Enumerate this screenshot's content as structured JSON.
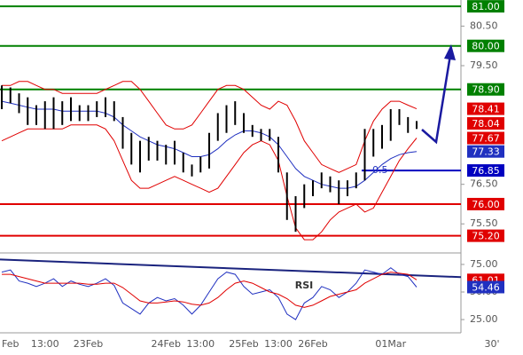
{
  "chart_data": [
    {
      "type": "range_bar",
      "categories": [
        null,
        "Feb",
        null,
        null,
        null,
        "13:00",
        null,
        null,
        null,
        null,
        "23Feb",
        null,
        null,
        null,
        null,
        null,
        null,
        null,
        null,
        "24Feb",
        null,
        null,
        null,
        "13:00",
        null,
        null,
        null,
        null,
        "25Feb",
        null,
        null,
        null,
        "13:00",
        null,
        null,
        null,
        "26Feb",
        null,
        null,
        null,
        null,
        null,
        null,
        null,
        null,
        "01Mar",
        null,
        null,
        null
      ],
      "x_unit_label": "30'",
      "high": [
        79.0,
        78.95,
        78.8,
        78.7,
        78.5,
        78.6,
        78.7,
        78.6,
        78.7,
        78.5,
        78.5,
        78.6,
        78.7,
        78.6,
        78.2,
        77.8,
        77.6,
        77.7,
        77.6,
        77.5,
        77.6,
        77.3,
        77.0,
        77.2,
        77.8,
        78.3,
        78.5,
        78.6,
        78.3,
        78.0,
        77.9,
        77.9,
        77.7,
        76.8,
        76.2,
        76.5,
        76.6,
        76.8,
        76.7,
        76.6,
        76.6,
        76.8,
        77.9,
        77.9,
        78.0,
        78.4,
        78.4,
        78.2,
        78.1
      ],
      "low": [
        78.4,
        78.55,
        78.3,
        78.0,
        78.0,
        77.9,
        77.9,
        78.0,
        78.1,
        78.1,
        78.1,
        78.2,
        78.2,
        78.1,
        77.4,
        77.0,
        76.8,
        77.1,
        77.1,
        77.0,
        77.0,
        76.8,
        76.7,
        76.8,
        76.9,
        77.6,
        77.8,
        78.0,
        77.8,
        77.7,
        77.6,
        77.6,
        76.8,
        75.6,
        75.3,
        75.9,
        76.2,
        76.4,
        76.3,
        76.0,
        76.2,
        76.4,
        76.6,
        77.2,
        77.4,
        77.6,
        78.0,
        77.8,
        77.9
      ],
      "color": "#000000",
      "last_price": 78.04,
      "last_price_color": "#e00000",
      "bands": [
        {
          "color": "#e00000",
          "values": [
            79.0,
            79.0,
            79.1,
            79.1,
            79.0,
            78.9,
            78.9,
            78.8,
            78.8,
            78.8,
            78.8,
            78.8,
            78.9,
            79.0,
            79.1,
            79.1,
            78.9,
            78.6,
            78.3,
            78.0,
            77.9,
            77.9,
            78.0,
            78.3,
            78.6,
            78.9,
            79.0,
            79.0,
            78.9,
            78.7,
            78.5,
            78.4,
            78.6,
            78.5,
            78.1,
            77.6,
            77.3,
            77.0,
            76.9,
            76.8,
            76.9,
            77.0,
            77.6,
            78.1,
            78.4,
            78.6,
            78.6,
            78.5,
            78.41
          ]
        },
        {
          "color": "#e00000",
          "values": [
            77.6,
            77.7,
            77.8,
            77.9,
            77.9,
            77.9,
            77.9,
            77.9,
            78.0,
            78.0,
            78.0,
            78.0,
            77.9,
            77.6,
            77.1,
            76.6,
            76.4,
            76.4,
            76.5,
            76.6,
            76.7,
            76.6,
            76.5,
            76.4,
            76.3,
            76.4,
            76.7,
            77.0,
            77.3,
            77.5,
            77.6,
            77.5,
            77.1,
            76.2,
            75.4,
            75.1,
            75.1,
            75.3,
            75.6,
            75.8,
            75.9,
            76.0,
            75.8,
            75.9,
            76.3,
            76.7,
            77.1,
            77.4,
            77.67
          ]
        },
        {
          "color": "#2030c0",
          "values": [
            78.6,
            78.55,
            78.5,
            78.45,
            78.4,
            78.4,
            78.4,
            78.35,
            78.35,
            78.35,
            78.35,
            78.35,
            78.3,
            78.2,
            78.0,
            77.85,
            77.7,
            77.6,
            77.5,
            77.45,
            77.4,
            77.3,
            77.2,
            77.2,
            77.25,
            77.4,
            77.6,
            77.75,
            77.85,
            77.85,
            77.8,
            77.7,
            77.5,
            77.2,
            76.9,
            76.7,
            76.6,
            76.5,
            76.45,
            76.4,
            76.4,
            76.45,
            76.6,
            76.8,
            77.0,
            77.15,
            77.25,
            77.3,
            77.33
          ]
        }
      ],
      "levels": [
        {
          "value": 81,
          "label": "81.00",
          "color": "#008000"
        },
        {
          "value": 80,
          "label": "80.00",
          "color": "#008000"
        },
        {
          "value": 78.9,
          "label": "78.90",
          "color": "#008000"
        },
        {
          "value": 76.85,
          "label": "76.85",
          "color": "#0000c0",
          "annotation": "0.5"
        },
        {
          "value": 76,
          "label": "76.00",
          "color": "#e00000"
        },
        {
          "value": 75.2,
          "label": "75.20",
          "color": "#e00000"
        }
      ],
      "ylim": [
        74.81,
        81.16
      ],
      "yticks": [
        {
          "value": 80.5,
          "label": "80.50"
        },
        {
          "value": 79.5,
          "label": "79.50"
        },
        {
          "value": 76.5,
          "label": "76.50"
        },
        {
          "value": 75.5,
          "label": "75.50"
        }
      ]
    },
    {
      "type": "line",
      "title": "RSI",
      "series": [
        {
          "color": "#2030c0",
          "values": [
            68,
            70,
            60,
            58,
            55,
            58,
            62,
            55,
            60,
            57,
            55,
            58,
            62,
            56,
            40,
            35,
            30,
            40,
            45,
            42,
            44,
            38,
            30,
            38,
            50,
            62,
            68,
            66,
            55,
            48,
            50,
            52,
            45,
            30,
            25,
            40,
            45,
            55,
            52,
            45,
            50,
            58,
            70,
            68,
            66,
            72,
            66,
            64,
            54.46
          ]
        },
        {
          "color": "#e00000",
          "values": [
            66,
            66,
            64,
            62,
            60,
            58,
            58,
            58,
            58,
            58,
            57,
            57,
            58,
            58,
            54,
            48,
            42,
            40,
            40,
            41,
            42,
            41,
            39,
            38,
            40,
            45,
            52,
            58,
            60,
            58,
            54,
            50,
            48,
            44,
            38,
            36,
            38,
            42,
            46,
            48,
            50,
            52,
            58,
            62,
            66,
            68,
            67,
            66,
            61.01
          ]
        }
      ],
      "trendline": {
        "color": "#1a237e",
        "values": [
          79.5,
          63.5
        ]
      },
      "ylim": [
        13,
        83
      ],
      "yticks": [
        {
          "value": 75,
          "label": "75.00"
        },
        {
          "value": 50,
          "label": "50.00"
        },
        {
          "value": 25,
          "label": "25.00"
        }
      ]
    }
  ]
}
